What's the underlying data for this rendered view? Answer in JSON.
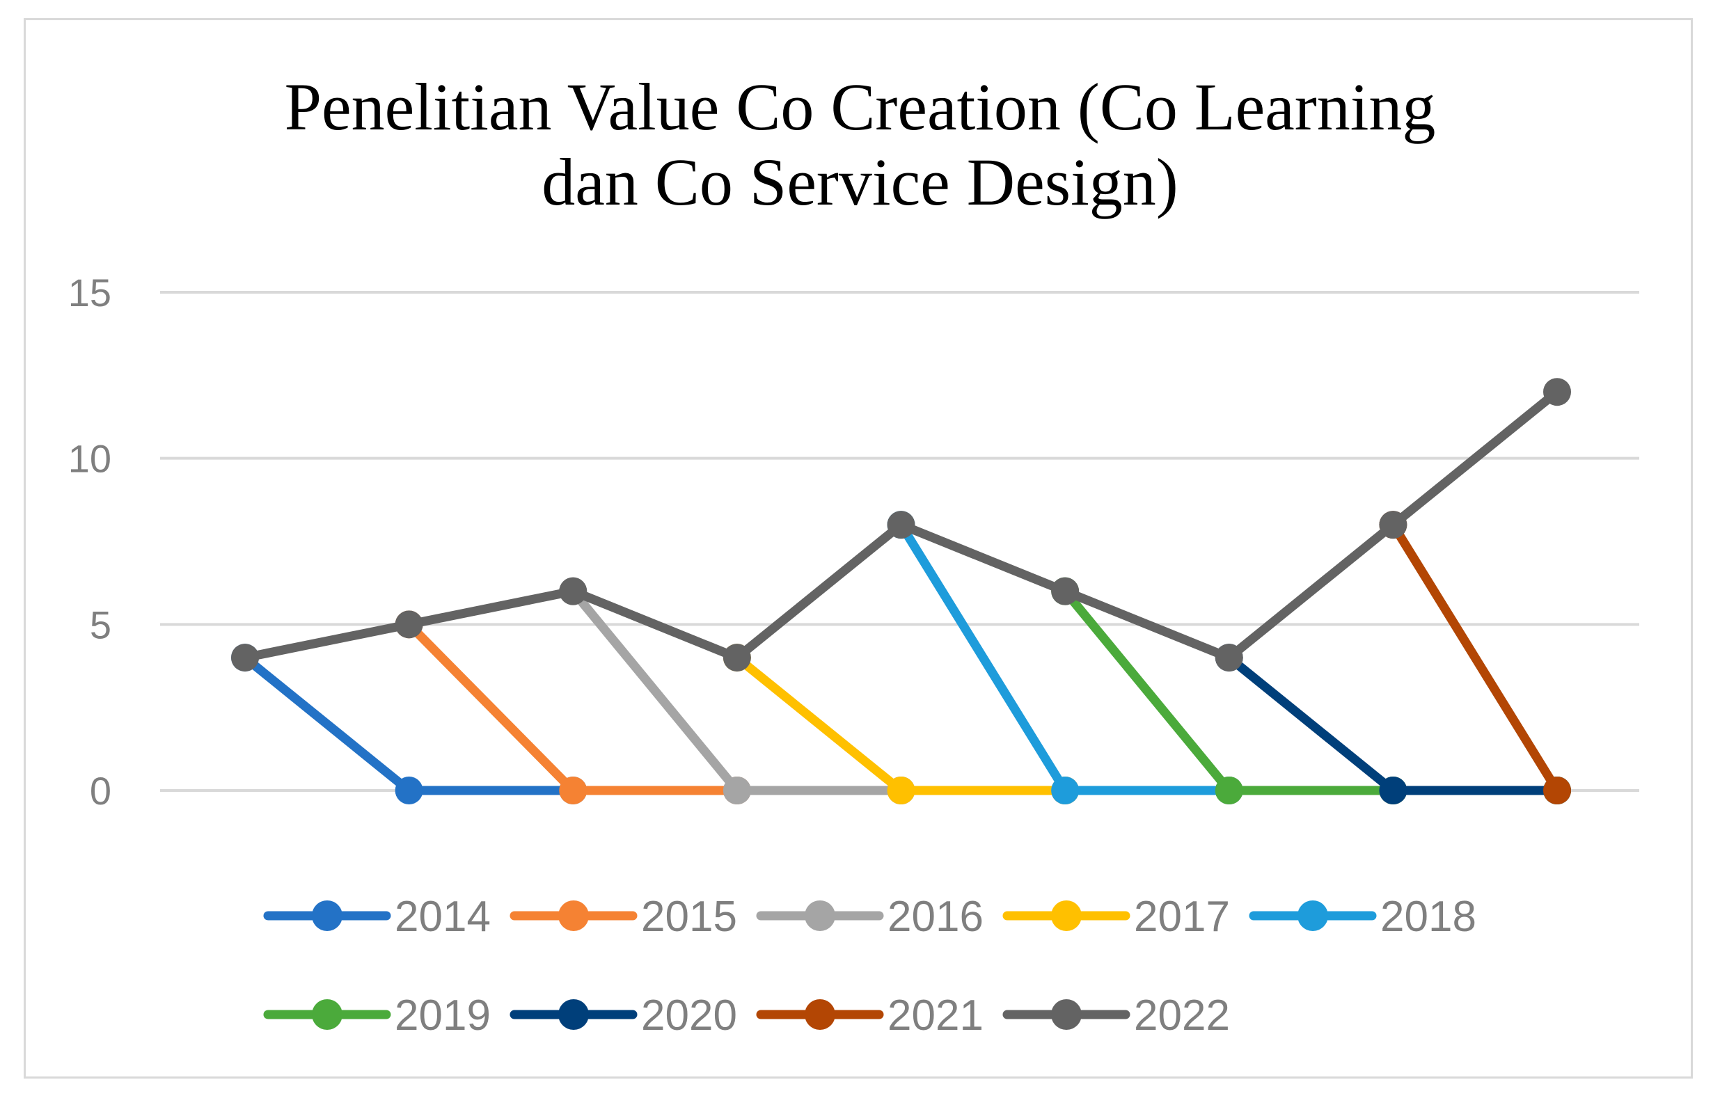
{
  "chart_data": {
    "type": "line",
    "title": "Penelitian Value Co Creation (Co Learning dan Co Service Design)",
    "title_lines": [
      "Penelitian Value Co Creation (Co Learning",
      "dan Co Service Design)"
    ],
    "xlabel": "",
    "ylabel": "",
    "ylim": [
      0,
      15
    ],
    "yticks": [
      0,
      5,
      10,
      15
    ],
    "grid": true,
    "legend_position": "bottom",
    "x": [
      1,
      2,
      3,
      4,
      5,
      6,
      7,
      8,
      9
    ],
    "series": [
      {
        "name": "2014",
        "color": "#2372C6",
        "values": [
          4,
          0,
          0,
          0,
          0,
          0,
          0,
          0,
          0
        ]
      },
      {
        "name": "2015",
        "color": "#F58233",
        "values": [
          null,
          5,
          0,
          0,
          0,
          0,
          0,
          0,
          0
        ]
      },
      {
        "name": "2016",
        "color": "#A5A5A5",
        "values": [
          null,
          null,
          6,
          0,
          0,
          0,
          0,
          0,
          0
        ]
      },
      {
        "name": "2017",
        "color": "#FFC000",
        "values": [
          null,
          null,
          null,
          4,
          0,
          0,
          0,
          0,
          0
        ]
      },
      {
        "name": "2018",
        "color": "#1E9CDB",
        "values": [
          null,
          null,
          null,
          null,
          8,
          0,
          0,
          0,
          0
        ]
      },
      {
        "name": "2019",
        "color": "#4BAA3B",
        "values": [
          null,
          null,
          null,
          null,
          null,
          6,
          0,
          0,
          0
        ]
      },
      {
        "name": "2020",
        "color": "#003F7A",
        "values": [
          null,
          null,
          null,
          null,
          null,
          null,
          4,
          0,
          0
        ]
      },
      {
        "name": "2021",
        "color": "#B34604",
        "values": [
          null,
          null,
          null,
          null,
          null,
          null,
          null,
          8,
          0
        ]
      },
      {
        "name": "2022",
        "color": "#636363",
        "values": [
          4,
          5,
          6,
          4,
          8,
          6,
          4,
          8,
          12
        ]
      }
    ]
  }
}
